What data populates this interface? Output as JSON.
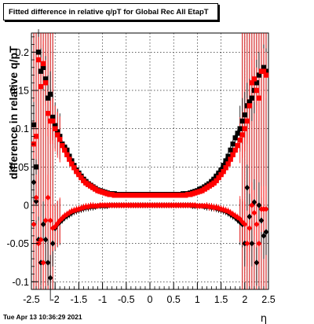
{
  "chart_data": {
    "type": "scatter",
    "title": "Fitted difference in relative q/pT for Global Rec All EtapT",
    "xlabel": "η",
    "ylabel": "difference in relative q/pT",
    "xlim": [
      -2.5,
      2.5
    ],
    "ylim": [
      -0.11,
      0.225
    ],
    "xticks": [
      "-2.5",
      "-2",
      "-1.5",
      "-1",
      "-0.5",
      "0",
      "0.5",
      "1",
      "1.5",
      "2",
      "2.5"
    ],
    "yticks": [
      "-0.1",
      "-0.05",
      "0",
      "0.05",
      "0.1",
      "0.15",
      "0.2"
    ],
    "grid": true,
    "marker_symbols": [
      "square",
      "diamond"
    ],
    "vertical_lines_x": [
      -2.45,
      -2.4,
      -2.35,
      -2.3,
      -2.25,
      -2.2,
      -2.15,
      -2.1,
      -2.05,
      1.95,
      2.0,
      2.05,
      2.1,
      2.15,
      2.2,
      2.25,
      2.3,
      2.35,
      2.4,
      2.45
    ],
    "series": [
      {
        "color": "#000000",
        "marker": "square",
        "x": [
          -2.45,
          -2.4,
          -2.35,
          -2.3,
          -2.25,
          -2.2,
          -2.15,
          -2.1,
          -2.05,
          -2.0,
          -1.95,
          -1.9,
          -1.85,
          -1.8,
          -1.75,
          -1.7,
          -1.65,
          -1.6,
          -1.55,
          -1.5,
          -1.45,
          -1.4,
          -1.35,
          -1.3,
          -1.25,
          -1.2,
          -1.15,
          -1.1,
          -1.05,
          -1.0,
          -0.95,
          -0.9,
          -0.85,
          -0.8,
          -0.75,
          -0.7,
          -0.65,
          -0.6,
          -0.55,
          -0.5,
          -0.45,
          -0.4,
          -0.35,
          -0.3,
          -0.25,
          -0.2,
          -0.15,
          -0.1,
          -0.05,
          0.0,
          0.05,
          0.1,
          0.15,
          0.2,
          0.25,
          0.3,
          0.35,
          0.4,
          0.45,
          0.5,
          0.55,
          0.6,
          0.65,
          0.7,
          0.75,
          0.8,
          0.85,
          0.9,
          0.95,
          1.0,
          1.05,
          1.1,
          1.15,
          1.2,
          1.25,
          1.3,
          1.35,
          1.4,
          1.45,
          1.5,
          1.55,
          1.6,
          1.65,
          1.7,
          1.75,
          1.8,
          1.85,
          1.9,
          1.95,
          2.0,
          2.05,
          2.1,
          2.15,
          2.2,
          2.25,
          2.3,
          2.35,
          2.4,
          2.45
        ],
        "y": [
          0.105,
          0.05,
          0.2,
          0.175,
          0.18,
          0.165,
          0.14,
          0.145,
          0.115,
          0.104,
          0.096,
          0.09,
          0.08,
          0.076,
          0.072,
          0.064,
          0.058,
          0.052,
          0.046,
          0.042,
          0.038,
          0.034,
          0.031,
          0.028,
          0.026,
          0.024,
          0.022,
          0.02,
          0.019,
          0.018,
          0.017,
          0.016,
          0.015,
          0.015,
          0.015,
          0.014,
          0.014,
          0.014,
          0.014,
          0.014,
          0.014,
          0.014,
          0.014,
          0.014,
          0.014,
          0.014,
          0.014,
          0.014,
          0.014,
          0.014,
          0.014,
          0.014,
          0.014,
          0.014,
          0.014,
          0.014,
          0.014,
          0.014,
          0.014,
          0.014,
          0.014,
          0.014,
          0.014,
          0.015,
          0.015,
          0.015,
          0.016,
          0.017,
          0.018,
          0.019,
          0.021,
          0.022,
          0.024,
          0.026,
          0.028,
          0.031,
          0.034,
          0.038,
          0.042,
          0.046,
          0.052,
          0.058,
          0.064,
          0.072,
          0.08,
          0.088,
          0.094,
          0.1,
          0.11,
          0.118,
          0.13,
          0.135,
          0.14,
          0.15,
          0.16,
          0.17,
          0.175,
          0.18,
          0.175
        ]
      },
      {
        "color": "#ff0000",
        "marker": "square",
        "x": [
          -2.45,
          -2.4,
          -2.35,
          -2.3,
          -2.25,
          -2.2,
          -2.15,
          -2.1,
          -2.05,
          -2.0,
          -1.95,
          -1.9,
          -1.85,
          -1.8,
          -1.75,
          -1.7,
          -1.65,
          -1.6,
          -1.55,
          -1.5,
          -1.45,
          -1.4,
          -1.35,
          -1.3,
          -1.25,
          -1.2,
          -1.15,
          -1.1,
          -1.05,
          -1.0,
          -0.95,
          -0.9,
          -0.85,
          -0.8,
          -0.75,
          -0.7,
          -0.65,
          -0.6,
          -0.55,
          -0.5,
          -0.45,
          -0.4,
          -0.35,
          -0.3,
          -0.25,
          -0.2,
          -0.15,
          -0.1,
          -0.05,
          0.0,
          0.05,
          0.1,
          0.15,
          0.2,
          0.25,
          0.3,
          0.35,
          0.4,
          0.45,
          0.5,
          0.55,
          0.6,
          0.65,
          0.7,
          0.75,
          0.8,
          0.85,
          0.9,
          0.95,
          1.0,
          1.05,
          1.1,
          1.15,
          1.2,
          1.25,
          1.3,
          1.35,
          1.4,
          1.45,
          1.5,
          1.55,
          1.6,
          1.65,
          1.7,
          1.75,
          1.8,
          1.85,
          1.9,
          1.95,
          2.0,
          2.05,
          2.1,
          2.15,
          2.2,
          2.25,
          2.3,
          2.35,
          2.4,
          2.45
        ],
        "y": [
          0.08,
          0.09,
          0.19,
          0.155,
          0.185,
          0.16,
          0.12,
          0.11,
          0.11,
          0.1,
          0.092,
          0.086,
          0.078,
          0.072,
          0.066,
          0.06,
          0.054,
          0.049,
          0.044,
          0.04,
          0.036,
          0.032,
          0.029,
          0.027,
          0.025,
          0.023,
          0.021,
          0.019,
          0.018,
          0.017,
          0.016,
          0.015,
          0.014,
          0.014,
          0.013,
          0.013,
          0.013,
          0.013,
          0.013,
          0.013,
          0.013,
          0.013,
          0.013,
          0.013,
          0.013,
          0.013,
          0.013,
          0.013,
          0.013,
          0.013,
          0.013,
          0.013,
          0.013,
          0.013,
          0.013,
          0.013,
          0.013,
          0.013,
          0.013,
          0.013,
          0.013,
          0.013,
          0.013,
          0.013,
          0.013,
          0.014,
          0.014,
          0.015,
          0.016,
          0.017,
          0.018,
          0.019,
          0.021,
          0.023,
          0.025,
          0.027,
          0.029,
          0.032,
          0.036,
          0.04,
          0.044,
          0.049,
          0.054,
          0.06,
          0.066,
          0.072,
          0.078,
          0.085,
          0.092,
          0.1,
          0.11,
          0.13,
          0.16,
          0.165,
          0.15,
          0.14,
          0.175,
          0.175,
          0.17
        ]
      },
      {
        "color": "#000000",
        "marker": "diamond",
        "x": [
          -2.45,
          -2.4,
          -2.35,
          -2.3,
          -2.25,
          -2.2,
          -2.15,
          -2.1,
          -2.05,
          -2.0,
          -1.95,
          -1.9,
          -1.85,
          -1.8,
          -1.75,
          -1.7,
          -1.65,
          -1.6,
          -1.55,
          -1.5,
          -1.45,
          -1.4,
          -1.35,
          -1.3,
          -1.25,
          -1.2,
          -1.15,
          -1.1,
          -1.05,
          -1.0,
          -0.95,
          -0.9,
          -0.85,
          -0.8,
          -0.75,
          -0.7,
          -0.65,
          -0.6,
          -0.55,
          -0.5,
          -0.45,
          -0.4,
          -0.35,
          -0.3,
          -0.25,
          -0.2,
          -0.15,
          -0.1,
          -0.05,
          0.0,
          0.05,
          0.1,
          0.15,
          0.2,
          0.25,
          0.3,
          0.35,
          0.4,
          0.45,
          0.5,
          0.55,
          0.6,
          0.65,
          0.7,
          0.75,
          0.8,
          0.85,
          0.9,
          0.95,
          1.0,
          1.05,
          1.1,
          1.15,
          1.2,
          1.25,
          1.3,
          1.35,
          1.4,
          1.45,
          1.5,
          1.55,
          1.6,
          1.65,
          1.7,
          1.75,
          1.8,
          1.85,
          1.9,
          1.95,
          2.0,
          2.05,
          2.1,
          2.15,
          2.2,
          2.25,
          2.3,
          2.35,
          2.4,
          2.45
        ],
        "y": [
          0.03,
          0.005,
          -0.045,
          -0.075,
          -0.025,
          -0.045,
          -0.075,
          -0.095,
          -0.05,
          -0.03,
          -0.025,
          -0.022,
          -0.019,
          -0.016,
          -0.014,
          -0.012,
          -0.01,
          -0.008,
          -0.007,
          -0.006,
          -0.005,
          -0.004,
          -0.003,
          -0.003,
          -0.002,
          -0.002,
          -0.002,
          -0.001,
          -0.001,
          -0.001,
          -0.001,
          -0.001,
          0.0,
          0.0,
          0.0,
          0.0,
          0.0,
          0.0,
          0.0,
          0.0,
          0.0,
          0.0,
          0.0,
          0.0,
          0.0,
          0.0,
          0.0,
          0.0,
          0.0,
          0.0,
          0.0,
          0.0,
          0.0,
          0.0,
          0.0,
          0.0,
          0.0,
          0.0,
          0.0,
          0.0,
          0.0,
          0.0,
          0.0,
          0.0,
          0.0,
          0.0,
          0.0,
          -0.001,
          -0.001,
          -0.001,
          -0.001,
          -0.001,
          -0.002,
          -0.002,
          -0.002,
          -0.003,
          -0.003,
          -0.004,
          -0.005,
          -0.006,
          -0.007,
          -0.008,
          -0.01,
          -0.012,
          -0.014,
          -0.016,
          -0.019,
          -0.022,
          -0.025,
          -0.05,
          0.023,
          -0.015,
          -0.05,
          0.004,
          -0.075,
          0.0,
          -0.02,
          -0.04,
          -0.035
        ]
      },
      {
        "color": "#ff0000",
        "marker": "diamond",
        "x": [
          -2.45,
          -2.4,
          -2.35,
          -2.3,
          -2.25,
          -2.2,
          -2.15,
          -2.1,
          -2.05,
          -2.0,
          -1.95,
          -1.9,
          -1.85,
          -1.8,
          -1.75,
          -1.7,
          -1.65,
          -1.6,
          -1.55,
          -1.5,
          -1.45,
          -1.4,
          -1.35,
          -1.3,
          -1.25,
          -1.2,
          -1.15,
          -1.1,
          -1.05,
          -1.0,
          -0.95,
          -0.9,
          -0.85,
          -0.8,
          -0.75,
          -0.7,
          -0.65,
          -0.6,
          -0.55,
          -0.5,
          -0.45,
          -0.4,
          -0.35,
          -0.3,
          -0.25,
          -0.2,
          -0.15,
          -0.1,
          -0.05,
          0.0,
          0.05,
          0.1,
          0.15,
          0.2,
          0.25,
          0.3,
          0.35,
          0.4,
          0.45,
          0.5,
          0.55,
          0.6,
          0.65,
          0.7,
          0.75,
          0.8,
          0.85,
          0.9,
          0.95,
          1.0,
          1.05,
          1.1,
          1.15,
          1.2,
          1.25,
          1.3,
          1.35,
          1.4,
          1.45,
          1.5,
          1.55,
          1.6,
          1.65,
          1.7,
          1.75,
          1.8,
          1.85,
          1.9,
          1.95,
          2.0,
          2.05,
          2.1,
          2.15,
          2.2,
          2.25,
          2.3,
          2.35,
          2.4,
          2.45
        ],
        "y": [
          -0.025,
          0.01,
          -0.05,
          -0.045,
          -0.075,
          -0.02,
          0.01,
          -0.02,
          -0.03,
          -0.028,
          -0.024,
          -0.02,
          -0.017,
          -0.014,
          -0.012,
          -0.01,
          -0.008,
          -0.007,
          -0.006,
          -0.005,
          -0.004,
          -0.003,
          -0.002,
          -0.002,
          -0.001,
          -0.001,
          -0.001,
          -0.001,
          0.0,
          0.0,
          0.0,
          0.0,
          0.0,
          0.0,
          0.0,
          0.0,
          0.0,
          0.0,
          0.0,
          0.0,
          0.0,
          0.0,
          0.0,
          0.0,
          0.0,
          0.0,
          0.0,
          0.0,
          0.0,
          0.0,
          0.0,
          0.0,
          0.0,
          0.0,
          0.0,
          0.0,
          0.0,
          0.0,
          0.0,
          0.0,
          0.0,
          0.0,
          0.0,
          0.0,
          0.0,
          0.0,
          0.0,
          0.0,
          0.0,
          -0.001,
          -0.001,
          -0.001,
          -0.001,
          -0.001,
          -0.002,
          -0.002,
          -0.003,
          -0.003,
          -0.004,
          -0.005,
          -0.006,
          -0.007,
          -0.008,
          -0.01,
          -0.012,
          -0.014,
          -0.016,
          -0.018,
          -0.022,
          -0.025,
          -0.05,
          -0.03,
          0.0,
          -0.01,
          -0.025,
          -0.05,
          -0.005,
          -0.005,
          -0.005
        ]
      }
    ]
  },
  "footer": {
    "timestamp": "Tue Apr 13 10:36:29 2021"
  }
}
